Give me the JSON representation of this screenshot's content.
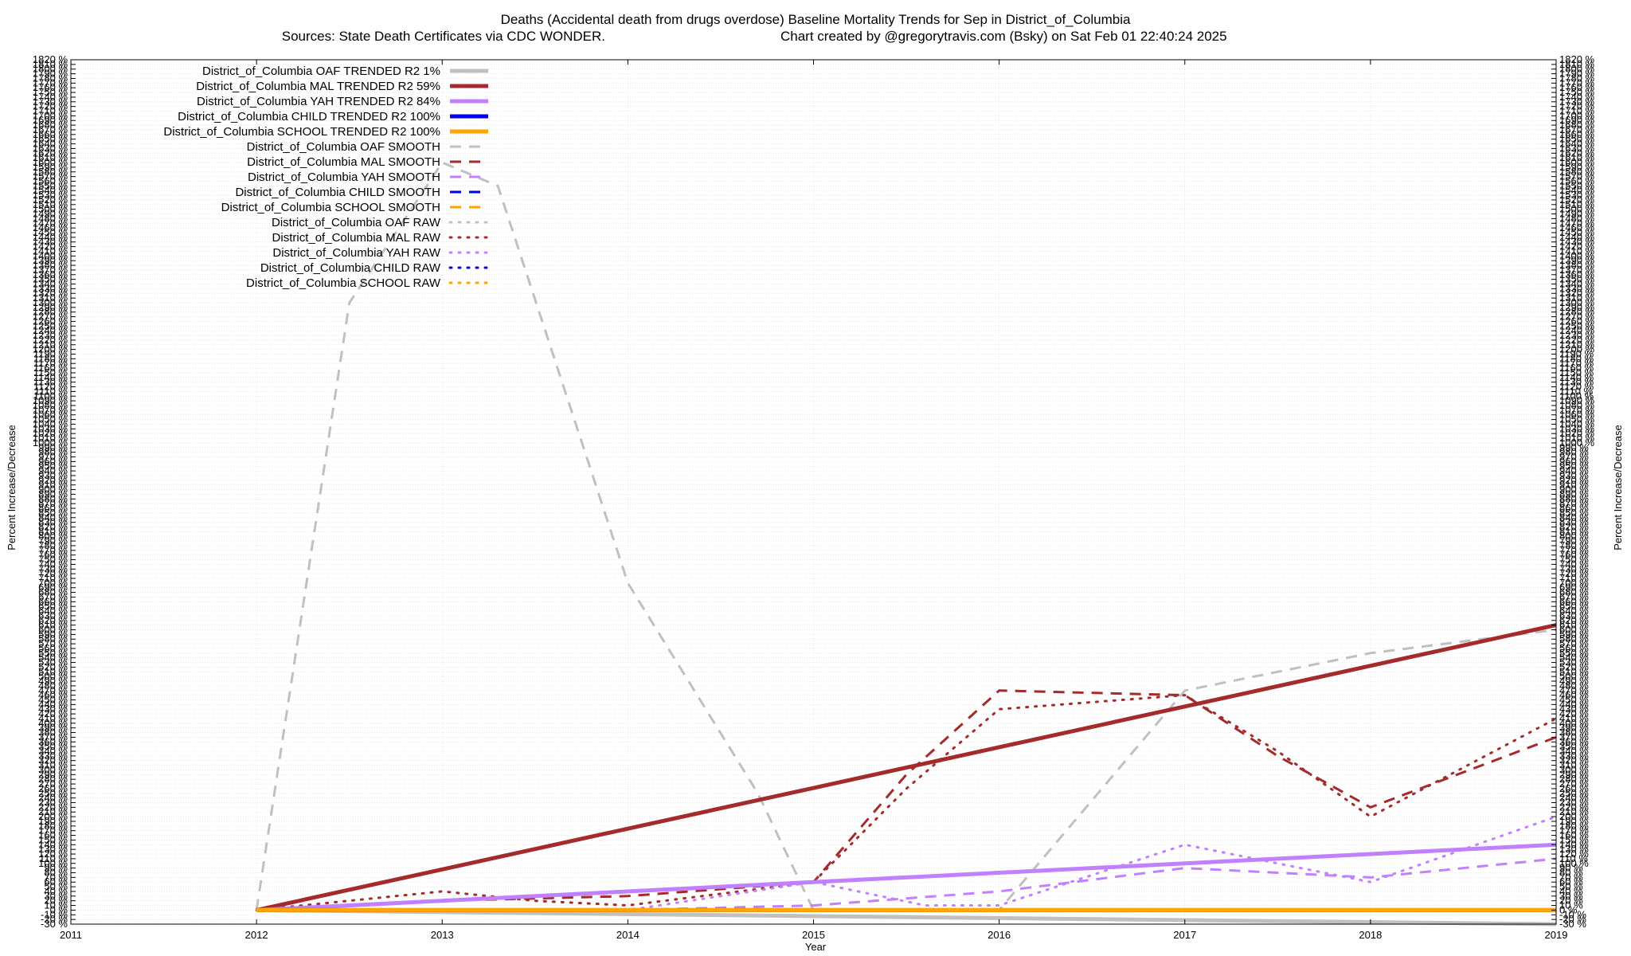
{
  "chart_data": {
    "type": "line",
    "title": "Deaths (Accidental death from drugs overdose)  Baseline Mortality Trends for Sep in District_of_Columbia",
    "subtitle_left": "Sources: State Death Certificates via CDC WONDER.",
    "subtitle_right": "Chart created by @gregorytravis.com (Bsky) on Sat Feb 01 22:40:24 2025",
    "xlabel": "Year",
    "ylabel": "Percent Increase/Decrease",
    "ylabel_right": "Percent Increase/Decrease",
    "xlim": [
      2011,
      2019
    ],
    "ylim": [
      -30,
      1820
    ],
    "x_ticks": [
      2011,
      2012,
      2013,
      2014,
      2015,
      2016,
      2017,
      2018,
      2019
    ],
    "y_ticks": [
      -30,
      -20,
      -10,
      0,
      10,
      20,
      30,
      40,
      50,
      60,
      70,
      80,
      90,
      100,
      110,
      120,
      130,
      140,
      150,
      160,
      170,
      180,
      190,
      200,
      210,
      220,
      230,
      240,
      250,
      260,
      270,
      280,
      290,
      300,
      310,
      320,
      330,
      340,
      350,
      360,
      370,
      380,
      390,
      400,
      410,
      420,
      430,
      440,
      450,
      460,
      470,
      480,
      490,
      500,
      510,
      520,
      530,
      540,
      550,
      560,
      570,
      580,
      590,
      600,
      610,
      620,
      630,
      640,
      650,
      660,
      670,
      680,
      690,
      700,
      710,
      720,
      730,
      740,
      750,
      760,
      770,
      780,
      790,
      800,
      810,
      820,
      830,
      840,
      850,
      860,
      870,
      880,
      890,
      900,
      910,
      920,
      930,
      940,
      950,
      960,
      970,
      980,
      990,
      1000,
      1010,
      1020,
      1030,
      1040,
      1050,
      1060,
      1070,
      1080,
      1090,
      1100,
      1110,
      1120,
      1130,
      1140,
      1150,
      1160,
      1170,
      1180,
      1190,
      1200,
      1210,
      1220,
      1230,
      1240,
      1250,
      1260,
      1270,
      1280,
      1290,
      1300,
      1310,
      1320,
      1330,
      1340,
      1350,
      1360,
      1370,
      1380,
      1390,
      1400,
      1410,
      1420,
      1430,
      1440,
      1450,
      1460,
      1470,
      1480,
      1490,
      1500,
      1510,
      1520,
      1530,
      1540,
      1550,
      1560,
      1570,
      1580,
      1590,
      1600,
      1610,
      1620,
      1630,
      1640,
      1650,
      1660,
      1670,
      1680,
      1690,
      1700,
      1710,
      1720,
      1730,
      1740,
      1750,
      1760,
      1770,
      1780,
      1790,
      1800,
      1810,
      1820
    ],
    "y_tick_suffix": " %",
    "grid": true,
    "legend_position": "top-left",
    "series": [
      {
        "name": "District_of_Columbia OAF TRENDED R2   1%",
        "color": "#c0c0c0",
        "style": "solid",
        "x": [
          2012,
          2019
        ],
        "y": [
          0,
          -30
        ]
      },
      {
        "name": "District_of_Columbia MAL TRENDED R2  59%",
        "color": "#a52a2a",
        "style": "solid",
        "x": [
          2012,
          2019
        ],
        "y": [
          0,
          610
        ]
      },
      {
        "name": "District_of_Columbia YAH TRENDED R2  84%",
        "color": "#c080ff",
        "style": "solid",
        "x": [
          2012,
          2019
        ],
        "y": [
          0,
          140
        ]
      },
      {
        "name": "District_of_Columbia CHILD TRENDED R2 100%",
        "color": "#0000ee",
        "style": "solid",
        "x": [
          2012,
          2019
        ],
        "y": [
          0,
          0
        ]
      },
      {
        "name": "District_of_Columbia SCHOOL TRENDED R2 100%",
        "color": "#ffa500",
        "style": "solid",
        "x": [
          2012,
          2019
        ],
        "y": [
          0,
          0
        ]
      },
      {
        "name": "District_of_Columbia OAF SMOOTH",
        "color": "#c0c0c0",
        "style": "dashed",
        "x": [
          2012,
          2012.5,
          2013,
          2013.3,
          2014,
          2014.7,
          2015,
          2016,
          2017,
          2018,
          2019
        ],
        "y": [
          0,
          1300,
          1600,
          1550,
          700,
          250,
          0,
          0,
          470,
          550,
          600
        ]
      },
      {
        "name": "District_of_Columbia MAL SMOOTH",
        "color": "#a52a2a",
        "style": "dashed",
        "x": [
          2012,
          2013,
          2013.5,
          2014,
          2015,
          2015.5,
          2016,
          2017,
          2017.5,
          2018,
          2019
        ],
        "y": [
          0,
          20,
          25,
          30,
          60,
          290,
          470,
          460,
          330,
          220,
          370
        ]
      },
      {
        "name": "District_of_Columbia YAH SMOOTH",
        "color": "#c080ff",
        "style": "dashed",
        "x": [
          2012,
          2013,
          2014,
          2015,
          2016,
          2017,
          2018,
          2019
        ],
        "y": [
          0,
          0,
          0,
          10,
          40,
          90,
          70,
          110
        ]
      },
      {
        "name": "District_of_Columbia CHILD SMOOTH",
        "color": "#0000ee",
        "style": "dashed",
        "x": [
          2012,
          2019
        ],
        "y": [
          0,
          0
        ]
      },
      {
        "name": "District_of_Columbia SCHOOL SMOOTH",
        "color": "#ffa500",
        "style": "dashed",
        "x": [
          2012,
          2019
        ],
        "y": [
          0,
          0
        ]
      },
      {
        "name": "District_of_Columbia OAF RAW",
        "color": "#c0c0c0",
        "style": "dotted",
        "x": [
          2012,
          2019
        ],
        "y": [
          0,
          0
        ]
      },
      {
        "name": "District_of_Columbia MAL RAW",
        "color": "#a52a2a",
        "style": "dotted",
        "x": [
          2012,
          2013,
          2013.5,
          2014,
          2015,
          2015.5,
          2016,
          2017,
          2017.5,
          2018,
          2019
        ],
        "y": [
          0,
          40,
          20,
          10,
          60,
          260,
          430,
          460,
          340,
          200,
          410
        ]
      },
      {
        "name": "District_of_Columbia YAH RAW",
        "color": "#c080ff",
        "style": "dotted",
        "x": [
          2012,
          2013,
          2014,
          2015,
          2015.6,
          2016,
          2017,
          2018,
          2019
        ],
        "y": [
          0,
          0,
          0,
          60,
          10,
          10,
          140,
          60,
          200
        ]
      },
      {
        "name": "District_of_Columbia CHILD RAW",
        "color": "#0000ee",
        "style": "dotted",
        "x": [
          2012,
          2019
        ],
        "y": [
          0,
          0
        ]
      },
      {
        "name": "District_of_Columbia SCHOOL RAW",
        "color": "#ffa500",
        "style": "dotted",
        "x": [
          2012,
          2019
        ],
        "y": [
          0,
          0
        ]
      }
    ]
  }
}
